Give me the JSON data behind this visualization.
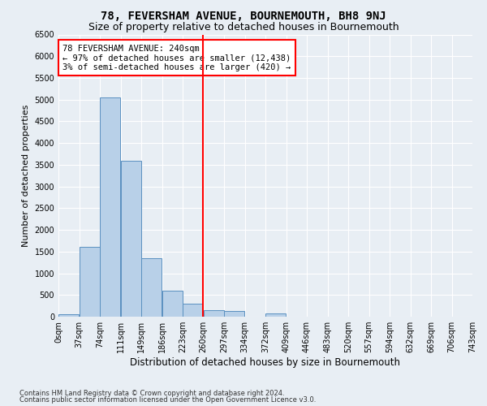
{
  "title": "78, FEVERSHAM AVENUE, BOURNEMOUTH, BH8 9NJ",
  "subtitle": "Size of property relative to detached houses in Bournemouth",
  "xlabel": "Distribution of detached houses by size in Bournemouth",
  "ylabel": "Number of detached properties",
  "footnote1": "Contains HM Land Registry data © Crown copyright and database right 2024.",
  "footnote2": "Contains public sector information licensed under the Open Government Licence v3.0.",
  "bin_labels": [
    "0sqm",
    "37sqm",
    "74sqm",
    "111sqm",
    "149sqm",
    "186sqm",
    "223sqm",
    "260sqm",
    "297sqm",
    "334sqm",
    "372sqm",
    "409sqm",
    "446sqm",
    "483sqm",
    "520sqm",
    "557sqm",
    "594sqm",
    "632sqm",
    "669sqm",
    "706sqm",
    "743sqm"
  ],
  "bar_values": [
    50,
    1600,
    5050,
    3600,
    1350,
    600,
    300,
    150,
    130,
    0,
    80,
    0,
    0,
    0,
    0,
    0,
    0,
    0,
    0,
    0
  ],
  "bar_color": "#b8d0e8",
  "bar_edge_color": "#5a90c0",
  "vline_x": 6,
  "vline_color": "red",
  "annotation_text": "78 FEVERSHAM AVENUE: 240sqm\n← 97% of detached houses are smaller (12,438)\n3% of semi-detached houses are larger (420) →",
  "annotation_box_color": "white",
  "annotation_box_edge": "red",
  "ylim": [
    0,
    6500
  ],
  "yticks": [
    0,
    500,
    1000,
    1500,
    2000,
    2500,
    3000,
    3500,
    4000,
    4500,
    5000,
    5500,
    6000,
    6500
  ],
  "title_fontsize": 10,
  "subtitle_fontsize": 9,
  "xlabel_fontsize": 8.5,
  "ylabel_fontsize": 8,
  "tick_fontsize": 7,
  "background_color": "#e8eef4",
  "plot_background": "#e8eef4",
  "bin_width": 1,
  "num_bins": 20,
  "vline_bin": 6.48
}
